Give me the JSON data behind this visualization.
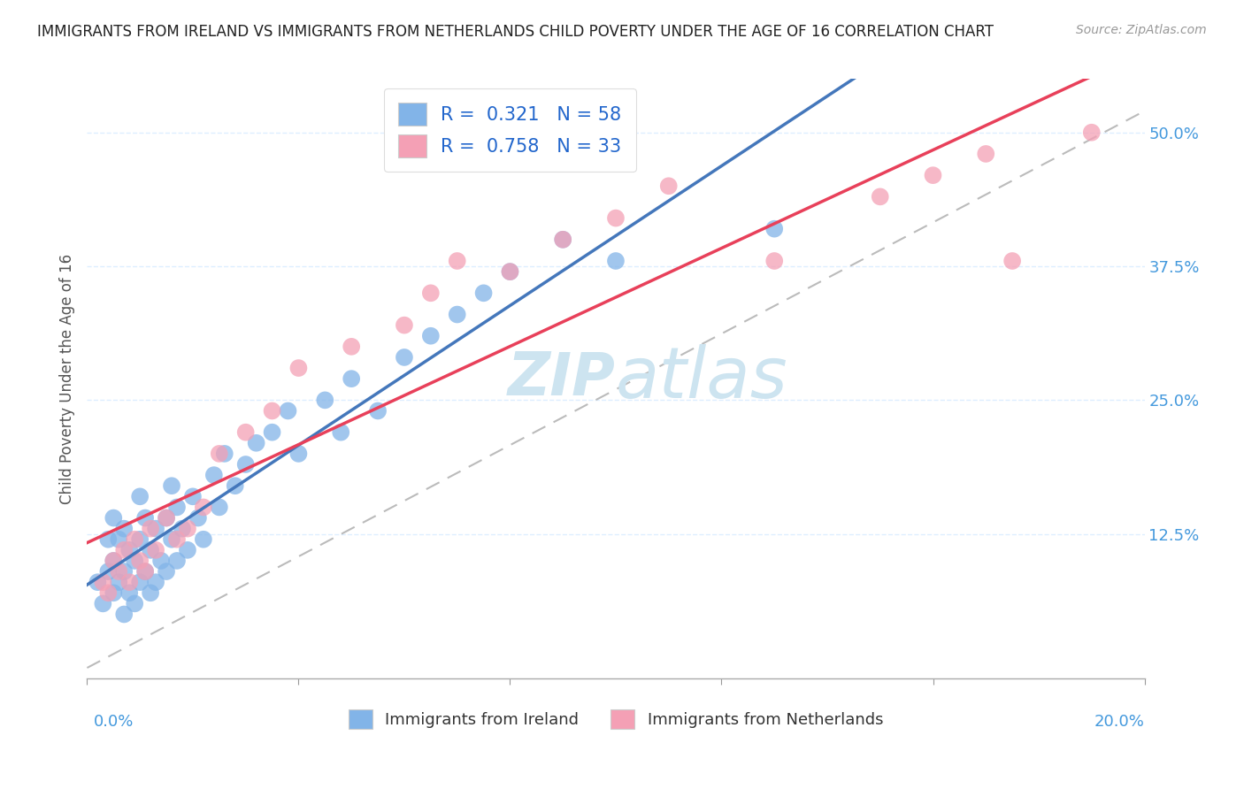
{
  "title": "IMMIGRANTS FROM IRELAND VS IMMIGRANTS FROM NETHERLANDS CHILD POVERTY UNDER THE AGE OF 16 CORRELATION CHART",
  "source": "Source: ZipAtlas.com",
  "ylabel": "Child Poverty Under the Age of 16",
  "ytick_labels": [
    "12.5%",
    "25.0%",
    "37.5%",
    "50.0%"
  ],
  "ytick_values": [
    0.125,
    0.25,
    0.375,
    0.5
  ],
  "xlim": [
    0,
    0.2
  ],
  "ylim": [
    -0.01,
    0.55
  ],
  "ireland_R": 0.321,
  "ireland_N": 58,
  "netherlands_R": 0.758,
  "netherlands_N": 33,
  "ireland_color": "#82b4e8",
  "netherlands_color": "#f4a0b5",
  "ireland_line_color": "#4477bb",
  "netherlands_line_color": "#e8405a",
  "dashed_line_color": "#bbbbbb",
  "title_color": "#222222",
  "axis_label_color": "#4499dd",
  "background_color": "#ffffff",
  "watermark_color": "#cde4f0",
  "ireland_points_x": [
    0.002,
    0.003,
    0.004,
    0.004,
    0.005,
    0.005,
    0.005,
    0.006,
    0.006,
    0.007,
    0.007,
    0.007,
    0.008,
    0.008,
    0.009,
    0.009,
    0.01,
    0.01,
    0.01,
    0.011,
    0.011,
    0.012,
    0.012,
    0.013,
    0.013,
    0.014,
    0.015,
    0.015,
    0.016,
    0.016,
    0.017,
    0.017,
    0.018,
    0.019,
    0.02,
    0.021,
    0.022,
    0.024,
    0.025,
    0.026,
    0.028,
    0.03,
    0.032,
    0.035,
    0.038,
    0.04,
    0.045,
    0.048,
    0.05,
    0.055,
    0.06,
    0.065,
    0.07,
    0.075,
    0.08,
    0.09,
    0.1,
    0.13
  ],
  "ireland_points_y": [
    0.08,
    0.06,
    0.09,
    0.12,
    0.07,
    0.1,
    0.14,
    0.08,
    0.12,
    0.05,
    0.09,
    0.13,
    0.07,
    0.11,
    0.06,
    0.1,
    0.08,
    0.12,
    0.16,
    0.09,
    0.14,
    0.07,
    0.11,
    0.08,
    0.13,
    0.1,
    0.09,
    0.14,
    0.12,
    0.17,
    0.1,
    0.15,
    0.13,
    0.11,
    0.16,
    0.14,
    0.12,
    0.18,
    0.15,
    0.2,
    0.17,
    0.19,
    0.21,
    0.22,
    0.24,
    0.2,
    0.25,
    0.22,
    0.27,
    0.24,
    0.29,
    0.31,
    0.33,
    0.35,
    0.37,
    0.4,
    0.38,
    0.41
  ],
  "netherlands_points_x": [
    0.003,
    0.004,
    0.005,
    0.006,
    0.007,
    0.008,
    0.009,
    0.01,
    0.011,
    0.012,
    0.013,
    0.015,
    0.017,
    0.019,
    0.022,
    0.025,
    0.03,
    0.035,
    0.04,
    0.05,
    0.06,
    0.065,
    0.07,
    0.08,
    0.09,
    0.1,
    0.11,
    0.13,
    0.15,
    0.16,
    0.17,
    0.175,
    0.19
  ],
  "netherlands_points_y": [
    0.08,
    0.07,
    0.1,
    0.09,
    0.11,
    0.08,
    0.12,
    0.1,
    0.09,
    0.13,
    0.11,
    0.14,
    0.12,
    0.13,
    0.15,
    0.2,
    0.22,
    0.24,
    0.28,
    0.3,
    0.32,
    0.35,
    0.38,
    0.37,
    0.4,
    0.42,
    0.45,
    0.38,
    0.44,
    0.46,
    0.48,
    0.38,
    0.5
  ]
}
